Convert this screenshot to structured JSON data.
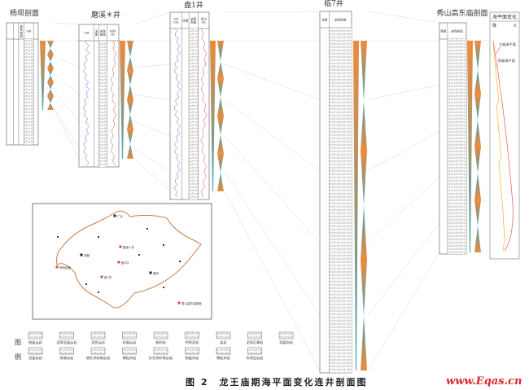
{
  "wells": [
    {
      "name": "杨坝剖面",
      "headers": [
        "",
        "",
        "岩性剖面",
        "GR"
      ]
    },
    {
      "name": "磨溪＊井",
      "headers": [
        "GR",
        "深度",
        "岩性剖面",
        "Rlld / Rs"
      ]
    },
    {
      "name": "盘1井",
      "headers": [
        "GR / CAL",
        "深度",
        "岩性剖面",
        "Rlld / Rs"
      ]
    },
    {
      "name": "临7井",
      "headers": [
        "深度",
        "岩性剖面"
      ]
    },
    {
      "name": "秀山高东庙剖面",
      "headers": [
        "厚度",
        "岩性剖面"
      ]
    }
  ],
  "sea_level_panel": {
    "title": "海平面变化",
    "fall": "降",
    "rise": "升",
    "curves": [
      {
        "label": "三级海平面",
        "color": "#e8574f"
      },
      {
        "label": "四级海平面",
        "color": "#f2b233"
      }
    ]
  },
  "map": {
    "places": [
      "广元",
      "成都",
      "重庆",
      "磨溪＊井",
      "盘1井",
      "临7井",
      "杨坝剖面",
      "秀山高东庙剖面"
    ],
    "outline_color": "#c87a45"
  },
  "legend": {
    "title_chars": [
      "图",
      "例"
    ],
    "row1": [
      "粉晶云岩",
      "泥质泥晶云岩",
      "泥质云岩",
      "砂屑云岩",
      "粉砂岩",
      "钙质泥岩",
      "盐岩",
      "泥质石膏岩",
      "泥晶灰岩"
    ],
    "row2": [
      "泥晶云岩",
      "砾屑云岩",
      "溶孔状砾屑云岩",
      "鲕粒灰岩",
      "针孔状砂屑云岩",
      "粉晶灰岩",
      "鲕粒灰岩",
      "灰质白云岩"
    ]
  },
  "caption": "图 2　龙王庙期海平面变化连井剖面图",
  "watermark": "www.Eqas.cn",
  "colors": {
    "orange": "#ee8a3c",
    "teal": "#4aa3b0",
    "frame": "#555555"
  }
}
